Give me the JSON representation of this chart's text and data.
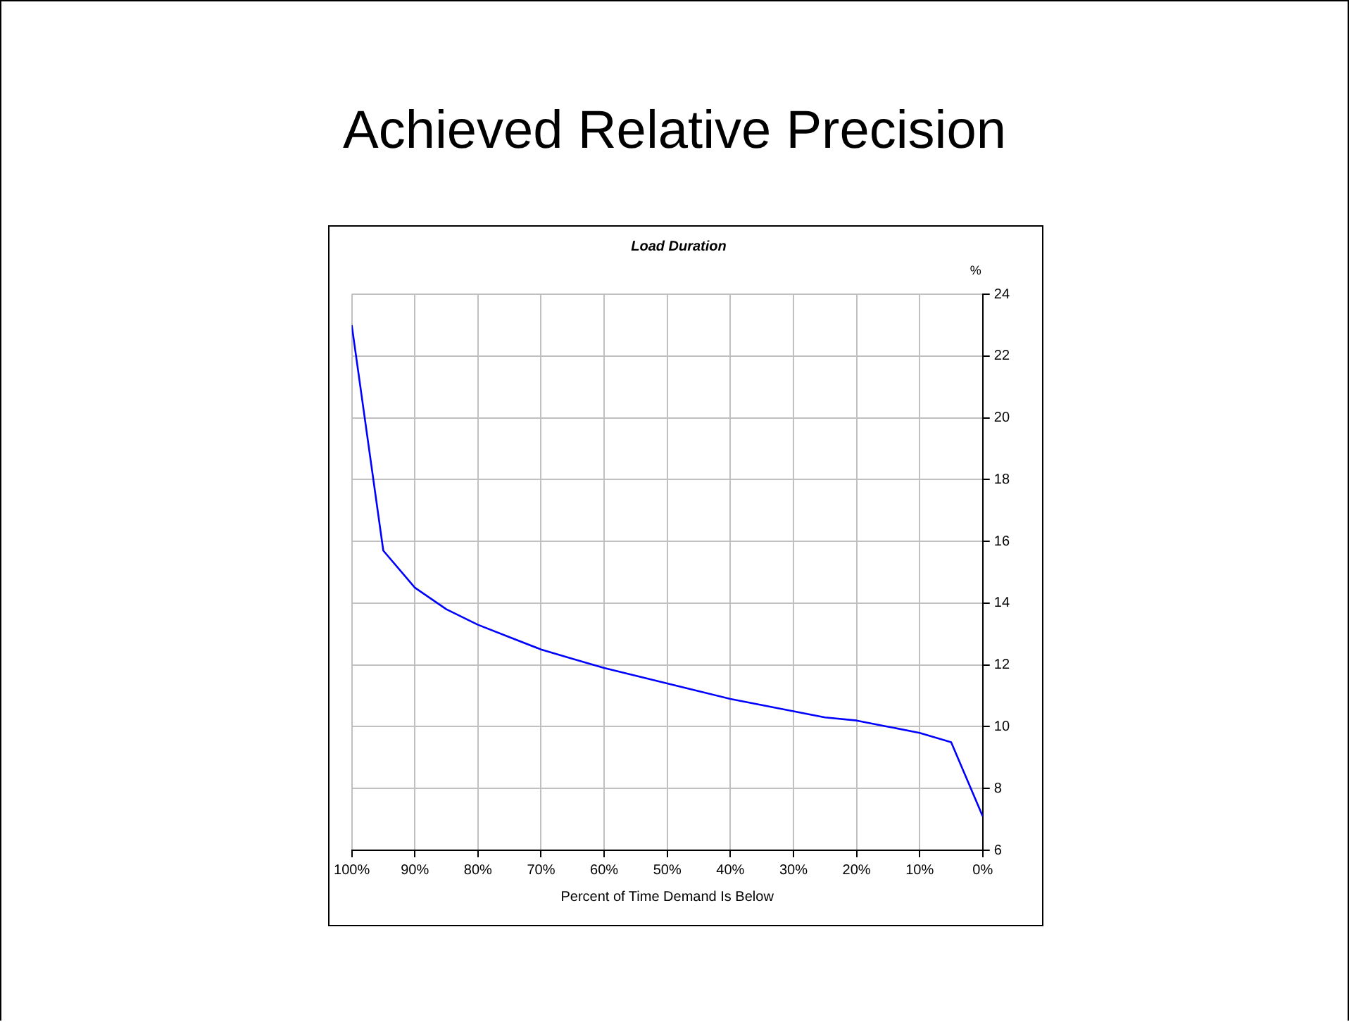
{
  "chart_data": {
    "type": "line",
    "title": "Achieved Relative Precision",
    "subtitle": "Load Duration",
    "xlabel": "Percent of Time Demand Is Below",
    "ylabel": "%",
    "x": [
      100,
      95,
      90,
      85,
      80,
      75,
      70,
      65,
      60,
      55,
      50,
      45,
      40,
      35,
      30,
      25,
      20,
      15,
      10,
      5,
      0
    ],
    "series": [
      {
        "color": "#0000ff",
        "values": [
          23,
          15.7,
          14.5,
          13.8,
          13.3,
          12.9,
          12.5,
          12.2,
          11.9,
          11.65,
          11.4,
          11.15,
          10.9,
          10.7,
          10.5,
          10.3,
          10.2,
          10.0,
          9.8,
          9.5,
          7.1
        ]
      }
    ],
    "xlim": [
      100,
      0
    ],
    "xticks": [
      {
        "value": 100,
        "label": "100%"
      },
      {
        "value": 90,
        "label": "90%"
      },
      {
        "value": 80,
        "label": "80%"
      },
      {
        "value": 70,
        "label": "70%"
      },
      {
        "value": 60,
        "label": "60%"
      },
      {
        "value": 50,
        "label": "50%"
      },
      {
        "value": 40,
        "label": "40%"
      },
      {
        "value": 30,
        "label": "30%"
      },
      {
        "value": 20,
        "label": "20%"
      },
      {
        "value": 10,
        "label": "10%"
      },
      {
        "value": 0,
        "label": "0%"
      }
    ],
    "ylim": [
      6,
      24
    ],
    "yticks": [
      6,
      8,
      10,
      12,
      14,
      16,
      18,
      20,
      22,
      24
    ],
    "grid": true,
    "legend": false,
    "marker": "none",
    "line_style": "solid"
  }
}
